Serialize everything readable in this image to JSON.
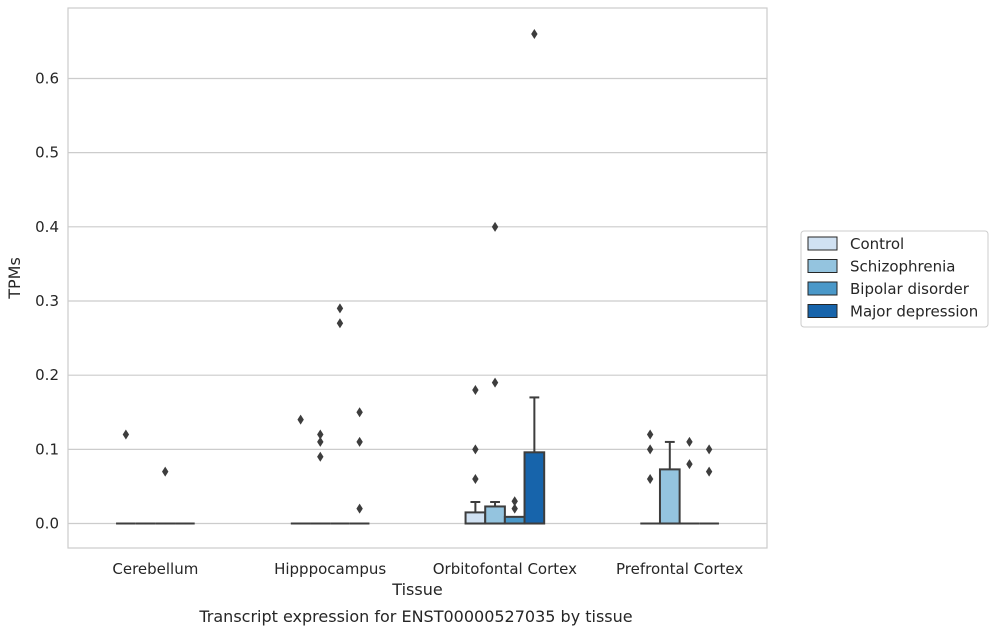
{
  "chart_data": {
    "type": "box",
    "title": "Transcript expression for ENST00000527035 by tissue",
    "xlabel": "Tissue",
    "ylabel": "TPMs",
    "ylim": [
      -0.033,
      0.695
    ],
    "yticks": [
      0.0,
      0.1,
      0.2,
      0.3,
      0.4,
      0.5,
      0.6
    ],
    "ytick_labels": [
      "0.0",
      "0.1",
      "0.2",
      "0.3",
      "0.4",
      "0.5",
      "0.6"
    ],
    "grid": true,
    "legend_position": "right",
    "categories": [
      "Cerebellum",
      "Hipppocampus",
      "Orbitofontal Cortex",
      "Prefrontal Cortex"
    ],
    "series": [
      {
        "name": "Control",
        "color": "#d0e1f2",
        "boxes": [
          {
            "q1": 0,
            "median": 0,
            "q3": 0,
            "whisker_low": 0,
            "whisker_high": 0,
            "outliers": [
              0.12
            ]
          },
          {
            "q1": 0,
            "median": 0,
            "q3": 0,
            "whisker_low": 0,
            "whisker_high": 0,
            "outliers": [
              0.14
            ]
          },
          {
            "q1": 0,
            "median": 0,
            "q3": 0.015,
            "whisker_low": 0,
            "whisker_high": 0.029,
            "outliers": [
              0.06,
              0.1,
              0.18
            ]
          },
          {
            "q1": 0,
            "median": 0,
            "q3": 0,
            "whisker_low": 0,
            "whisker_high": 0,
            "outliers": [
              0.06,
              0.1,
              0.12
            ]
          }
        ]
      },
      {
        "name": "Schizophrenia",
        "color": "#94c4df",
        "boxes": [
          {
            "q1": 0,
            "median": 0,
            "q3": 0,
            "whisker_low": 0,
            "whisker_high": 0,
            "outliers": []
          },
          {
            "q1": 0,
            "median": 0,
            "q3": 0,
            "whisker_low": 0,
            "whisker_high": 0,
            "outliers": [
              0.09,
              0.11,
              0.12
            ]
          },
          {
            "q1": 0,
            "median": 0,
            "q3": 0.023,
            "whisker_low": 0,
            "whisker_high": 0.029,
            "outliers": [
              0.19,
              0.4
            ]
          },
          {
            "q1": 0,
            "median": 0,
            "q3": 0.073,
            "whisker_low": 0,
            "whisker_high": 0.11,
            "outliers": []
          }
        ]
      },
      {
        "name": "Bipolar disorder",
        "color": "#4a98c9",
        "boxes": [
          {
            "q1": 0,
            "median": 0,
            "q3": 0,
            "whisker_low": 0,
            "whisker_high": 0,
            "outliers": [
              0.07
            ]
          },
          {
            "q1": 0,
            "median": 0,
            "q3": 0,
            "whisker_low": 0,
            "whisker_high": 0,
            "outliers": [
              0.27,
              0.29
            ]
          },
          {
            "q1": 0,
            "median": 0,
            "q3": 0.009,
            "whisker_low": 0,
            "whisker_high": 0.009,
            "outliers": [
              0.02,
              0.03
            ]
          },
          {
            "q1": 0,
            "median": 0,
            "q3": 0,
            "whisker_low": 0,
            "whisker_high": 0,
            "outliers": [
              0.08,
              0.11
            ]
          }
        ]
      },
      {
        "name": "Major depression",
        "color": "#1764ab",
        "boxes": [
          {
            "q1": 0,
            "median": 0,
            "q3": 0,
            "whisker_low": 0,
            "whisker_high": 0,
            "outliers": []
          },
          {
            "q1": 0,
            "median": 0,
            "q3": 0,
            "whisker_low": 0,
            "whisker_high": 0,
            "outliers": [
              0.02,
              0.11,
              0.15
            ]
          },
          {
            "q1": 0,
            "median": 0,
            "q3": 0.096,
            "whisker_low": 0,
            "whisker_high": 0.17,
            "outliers": [
              0.66
            ]
          },
          {
            "q1": 0,
            "median": 0,
            "q3": 0,
            "whisker_low": 0,
            "whisker_high": 0,
            "outliers": [
              0.07,
              0.1
            ]
          }
        ]
      }
    ]
  }
}
